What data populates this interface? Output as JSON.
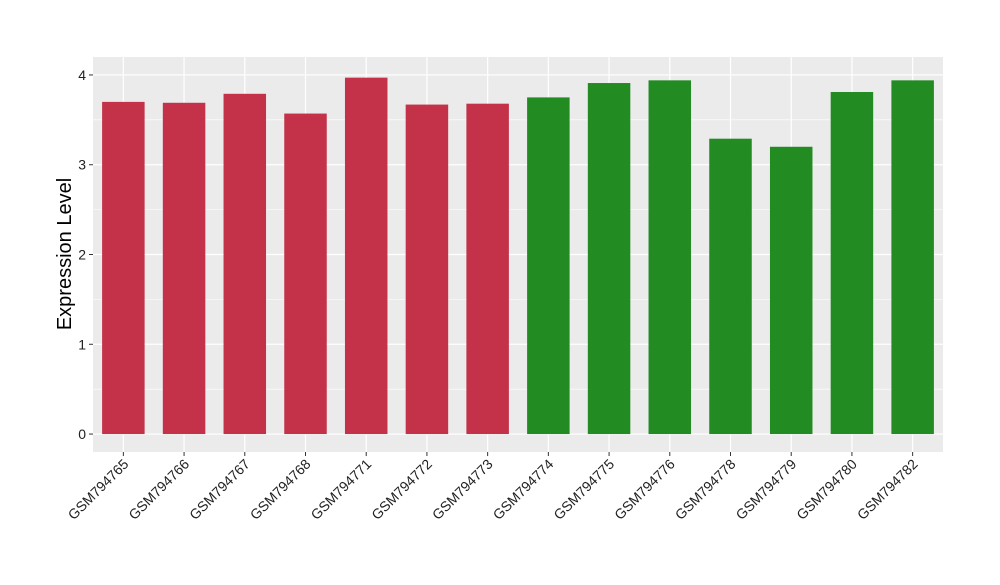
{
  "chart_data": {
    "type": "bar",
    "title": "",
    "xlabel": "",
    "ylabel": "Expression Level",
    "ylim": [
      -0.2,
      4.2
    ],
    "yticks": [
      0,
      1,
      2,
      3,
      4
    ],
    "grid": true,
    "legend": "none",
    "categories": [
      "GSM794765",
      "GSM794766",
      "GSM794767",
      "GSM794768",
      "GSM794771",
      "GSM794772",
      "GSM794773",
      "GSM794774",
      "GSM794775",
      "GSM794776",
      "GSM794778",
      "GSM794779",
      "GSM794780",
      "GSM794782"
    ],
    "values": [
      3.7,
      3.69,
      3.79,
      3.57,
      3.97,
      3.67,
      3.68,
      3.75,
      3.91,
      3.94,
      3.29,
      3.2,
      3.81,
      3.94
    ],
    "groups": [
      "a",
      "a",
      "a",
      "a",
      "a",
      "a",
      "a",
      "b",
      "b",
      "b",
      "b",
      "b",
      "b",
      "b"
    ],
    "colors": {
      "a": "#C33249",
      "b": "#228B22"
    },
    "panel_background": "#EBEBEB",
    "grid_color": "#FFFFFF"
  }
}
